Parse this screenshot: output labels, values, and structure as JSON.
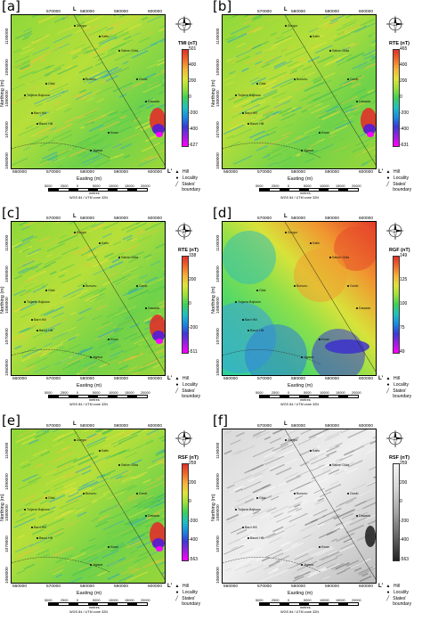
{
  "panels": [
    {
      "id": "a",
      "label": "[a]",
      "title": "TMI (nT)",
      "ticks": [
        "501",
        "400",
        "200",
        "0",
        "-200",
        "-400",
        "-627"
      ],
      "ramp": "color",
      "pattern": "grain",
      "anomaly": true
    },
    {
      "id": "b",
      "label": "[b]",
      "title": "RTE (nT)",
      "ticks": [
        "465",
        "400",
        "200",
        "0",
        "-200",
        "-400",
        "-631"
      ],
      "ramp": "color",
      "pattern": "grain",
      "anomaly": true
    },
    {
      "id": "c",
      "label": "[c]",
      "title": "RTE (nT)",
      "ticks": [
        "338",
        "200",
        "0",
        "-200",
        "-511"
      ],
      "ramp": "color",
      "pattern": "grain",
      "anomaly": true
    },
    {
      "id": "d",
      "label": "[d]",
      "title": "RGF (nT)",
      "ticks": [
        "149",
        "125",
        "100",
        "75",
        "49"
      ],
      "ramp": "color",
      "pattern": "regional",
      "anomaly": false
    },
    {
      "id": "e",
      "label": "[e]",
      "title": "RSF (nT)",
      "ticks": [
        "259",
        "200",
        "0",
        "-200",
        "-400",
        "-563"
      ],
      "ramp": "color",
      "pattern": "grain",
      "anomaly": true
    },
    {
      "id": "f",
      "label": "[f]",
      "title": "RSF (nT)",
      "ticks": [
        "259",
        "200",
        "0",
        "-200",
        "-400",
        "-563"
      ],
      "ramp": "gray",
      "pattern": "grain",
      "anomaly": true
    }
  ],
  "axes": {
    "x_ticks": [
      "560000",
      "570000",
      "580000",
      "590000",
      "600000"
    ],
    "y_ticks": [
      "1100000",
      "1090000",
      "1080000",
      "1070000",
      "1060000"
    ],
    "xlabel": "Easting (m)",
    "ylabel": "Northing (m)"
  },
  "profile": {
    "start": "L",
    "end": "L'"
  },
  "localities": [
    "Zungur",
    "Kafin",
    "Sabon Gida",
    "Bununu",
    "Gital",
    "Tuljarra Bajiowa",
    "Barri Hill",
    "Bauni Hill",
    "Jigawa",
    "Kwan",
    "Ganki",
    "Dawada"
  ],
  "legend": {
    "hill": "Hill",
    "locality": "Locality",
    "boundary": "States' boundary"
  },
  "scale": {
    "numbers": [
      "5000",
      "2500",
      "0",
      "5000",
      "10000",
      "15000",
      "20000"
    ],
    "unit": "metres",
    "projection": "WGS 84 / UTM zone 32N"
  },
  "colors": {
    "ramp_color": [
      "#ff00ff",
      "#9b1fe0",
      "#3a3ad6",
      "#1a8be0",
      "#20c0c0",
      "#3fcf5a",
      "#9be03a",
      "#dfe33a",
      "#f4b23a",
      "#ef6b2a",
      "#e0302a"
    ],
    "ramp_gray": [
      "#222222",
      "#666666",
      "#a5a5a5",
      "#d6d6d6",
      "#f5f5f5"
    ]
  }
}
